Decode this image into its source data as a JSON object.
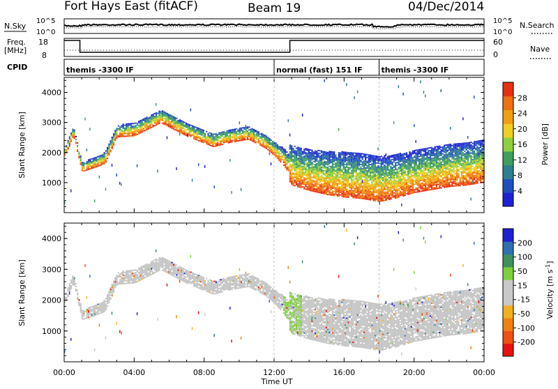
{
  "header": {
    "title": "Fort Hays East (fitACF)",
    "beam": "Beam 19",
    "date": "04/Dec/2014"
  },
  "top_panels": {
    "nsky_label": "N.Sky",
    "nsky_ticks": [
      "10^5",
      "10^0"
    ],
    "nsearch_label": "N.Search",
    "nsearch_ticks": [
      "10^5",
      "10^0"
    ],
    "freq_label": "Freq.",
    "freq_unit": "[MHz]",
    "freq_ticks": [
      "18",
      "8"
    ],
    "nave_label": "Nave",
    "nave_ticks": [
      "60",
      "0"
    ],
    "cpid_label": "CPID",
    "cpid_segments": [
      {
        "label": "themis -3300 IF",
        "start": 0.0
      },
      {
        "label": "normal (fast) 151 IF",
        "start": 12.0
      },
      {
        "label": "themis -3300 IF",
        "start": 18.0
      }
    ]
  },
  "colors": {
    "power_scale": [
      "#1f1fd6",
      "#1f4fbf",
      "#2f7f8f",
      "#3f9f5f",
      "#8fcf3f",
      "#efcf1f",
      "#f09f10",
      "#f06f0f",
      "#e83010"
    ],
    "velocity_scale": [
      "#1f1fd6",
      "#2f6faf",
      "#3f8f5f",
      "#7fcf3f",
      "#c8c8c8",
      "#c8c8c8",
      "#f0b020",
      "#f08010",
      "#f05010",
      "#e81010"
    ],
    "scatter_gray": "#c3c3c3"
  },
  "power_colorbar": {
    "label": "Power [dB]",
    "ticks": [
      "28",
      "24",
      "20",
      "16",
      "12",
      "8",
      "4"
    ]
  },
  "velocity_colorbar": {
    "label": "Velocity [m s",
    "label_sup": "-1",
    "label_end": "]",
    "ticks": [
      "200",
      "100",
      "50",
      "15",
      "-15",
      "-50",
      "-100",
      "-200"
    ]
  },
  "x_axis": {
    "label": "Time UT",
    "ticks": [
      "00:00",
      "04:00",
      "08:00",
      "12:00",
      "16:00",
      "20:00",
      "00:00"
    ]
  },
  "chart_data": {
    "type": "heatmap",
    "xlabel": "Time UT",
    "ylabel": "Slant Range [km]",
    "xlim": [
      0,
      24
    ],
    "ylim": [
      0,
      4500
    ],
    "y_ticks": [
      1000,
      2000,
      3000,
      4000
    ],
    "panels": [
      "Power [dB]",
      "Velocity [m s-1]"
    ],
    "echo_band_center_km": [
      [
        0.0,
        2000
      ],
      [
        0.5,
        2700
      ],
      [
        1.0,
        1500
      ],
      [
        1.7,
        1650
      ],
      [
        2.3,
        1800
      ],
      [
        3.0,
        2700
      ],
      [
        4.0,
        2750
      ],
      [
        5.5,
        3200
      ],
      [
        7.0,
        2750
      ],
      [
        8.5,
        2400
      ],
      [
        9.5,
        2550
      ],
      [
        10.5,
        2650
      ],
      [
        11.5,
        2350
      ],
      [
        12.5,
        1850
      ],
      [
        13.0,
        1500
      ],
      [
        14.0,
        1350
      ],
      [
        15.0,
        1250
      ],
      [
        16.0,
        1200
      ],
      [
        17.0,
        1150
      ],
      [
        18.0,
        1050
      ],
      [
        19.0,
        1150
      ],
      [
        20.0,
        1300
      ],
      [
        21.0,
        1400
      ],
      [
        22.0,
        1500
      ],
      [
        23.0,
        1550
      ],
      [
        24.0,
        1650
      ]
    ],
    "echo_band_width_km": [
      [
        0.0,
        300
      ],
      [
        1.0,
        300
      ],
      [
        3.0,
        400
      ],
      [
        5.5,
        450
      ],
      [
        9.0,
        450
      ],
      [
        12.0,
        450
      ],
      [
        13.0,
        700
      ],
      [
        16.0,
        900
      ],
      [
        18.0,
        900
      ],
      [
        20.0,
        800
      ],
      [
        24.0,
        800
      ]
    ],
    "power_at_lower_edge_db": 28,
    "power_at_upper_edge_db": 8,
    "velocity_typical_m_s": [
      -15,
      15
    ]
  }
}
